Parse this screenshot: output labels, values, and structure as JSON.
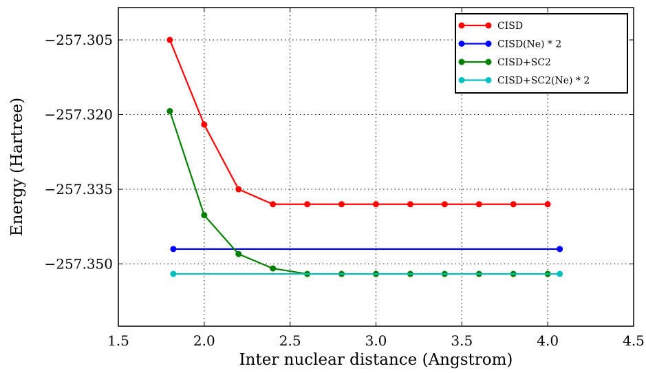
{
  "chart_data": {
    "type": "line",
    "xlabel": "Inter nuclear distance (Angstrom)",
    "ylabel": "Energy (Hartree)",
    "xlim": [
      1.5,
      4.5
    ],
    "ylim": [
      -257.3625,
      -257.2985
    ],
    "xticks": [
      "1.5",
      "2.0",
      "2.5",
      "3.0",
      "3.5",
      "4.0",
      "4.5"
    ],
    "xtick_values": [
      1.5,
      2.0,
      2.5,
      3.0,
      3.5,
      4.0,
      4.5
    ],
    "yticks": [
      "−257.305",
      "−257.320",
      "−257.335",
      "−257.350"
    ],
    "ytick_values": [
      -257.305,
      -257.32,
      -257.335,
      -257.35
    ],
    "grid": true,
    "legend_position": "top-right",
    "series": [
      {
        "name": "CISD",
        "color": "#ff0000",
        "x": [
          1.8,
          2.0,
          2.2,
          2.4,
          2.6,
          2.8,
          3.0,
          3.2,
          3.4,
          3.6,
          3.8,
          4.0
        ],
        "y": [
          -257.305,
          -257.322,
          -257.335,
          -257.338,
          -257.338,
          -257.338,
          -257.338,
          -257.338,
          -257.338,
          -257.338,
          -257.338,
          -257.338
        ]
      },
      {
        "name": "CISD(Ne) * 2",
        "color": "#0000ff",
        "x": [
          1.82,
          4.07
        ],
        "y": [
          -257.347,
          -257.347
        ]
      },
      {
        "name": "CISD+SC2",
        "color": "#008000",
        "x": [
          1.8,
          2.0,
          2.2,
          2.4,
          2.6,
          2.8,
          3.0,
          3.2,
          3.4,
          3.6,
          3.8,
          4.0
        ],
        "y": [
          -257.3193,
          -257.3402,
          -257.348,
          -257.3509,
          -257.352,
          -257.352,
          -257.352,
          -257.352,
          -257.352,
          -257.352,
          -257.352,
          -257.352
        ]
      },
      {
        "name": "CISD+SC2(Ne) * 2",
        "color": "#00bfbf",
        "x": [
          1.82,
          4.07
        ],
        "y": [
          -257.352,
          -257.352
        ]
      }
    ]
  }
}
